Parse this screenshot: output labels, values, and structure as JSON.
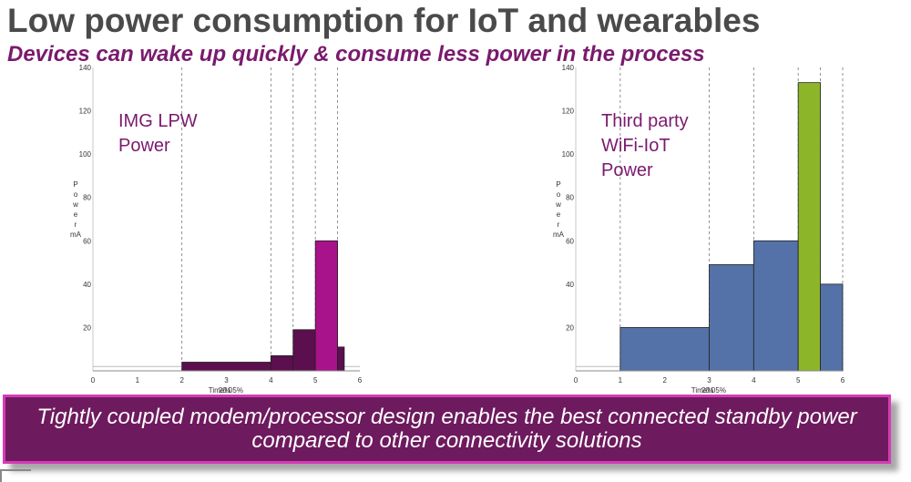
{
  "slide": {
    "title": "Low power consumption for IoT and wearables",
    "subtitle": "Devices can wake up quickly & consume less power in the process",
    "banner": "Tightly coupled modem/processor design enables the best connected standby power compared to other connectivity solutions"
  },
  "chart_data": [
    {
      "type": "bar",
      "inset_label": [
        "IMG LPW",
        "Power"
      ],
      "ylabel": "Power mA",
      "ylabel_chars": [
        "P",
        "o",
        "w",
        "e",
        "r",
        "mA"
      ],
      "xlabel": "Time%",
      "xlabel_overlay": "20.05%",
      "xlim": [
        0,
        6
      ],
      "ylim": [
        0,
        140
      ],
      "xticks": [
        "0",
        "1",
        "2",
        "3",
        "4",
        "5",
        "6"
      ],
      "yticks": [
        "20",
        "40",
        "60",
        "80",
        "100",
        "120",
        "140"
      ],
      "baseline": 2,
      "vlines": [
        2,
        4,
        4.5,
        5,
        5.5
      ],
      "bars": [
        {
          "x0": 2,
          "x1": 4,
          "value": 4,
          "color": "#5b0f4f"
        },
        {
          "x0": 4,
          "x1": 4.5,
          "value": 7,
          "color": "#5b0f4f"
        },
        {
          "x0": 4.5,
          "x1": 5,
          "value": 19,
          "color": "#5b0f4f"
        },
        {
          "x0": 5,
          "x1": 5.5,
          "value": 60,
          "color": "#a8128a"
        },
        {
          "x0": 5.5,
          "x1": 5.65,
          "value": 11,
          "color": "#5b0f4f"
        }
      ]
    },
    {
      "type": "bar",
      "inset_label": [
        "Third party",
        "WiFi-IoT",
        "Power"
      ],
      "ylabel": "Power mA",
      "ylabel_chars": [
        "P",
        "o",
        "w",
        "e",
        "r",
        "mA"
      ],
      "xlabel": "Time%",
      "xlabel_overlay": "20.05%",
      "xlim": [
        0,
        6
      ],
      "ylim": [
        0,
        140
      ],
      "xticks": [
        "0",
        "1",
        "2",
        "3",
        "4",
        "5",
        "6"
      ],
      "yticks": [
        "20",
        "40",
        "60",
        "80",
        "100",
        "120",
        "140"
      ],
      "baseline": 2,
      "vlines": [
        1,
        3,
        4,
        5,
        5.5,
        6
      ],
      "bars": [
        {
          "x0": 1,
          "x1": 3,
          "value": 20,
          "color": "#5472a8"
        },
        {
          "x0": 3,
          "x1": 4,
          "value": 49,
          "color": "#5472a8"
        },
        {
          "x0": 4,
          "x1": 5,
          "value": 60,
          "color": "#5472a8"
        },
        {
          "x0": 5,
          "x1": 5.5,
          "value": 133,
          "color": "#8db52a"
        },
        {
          "x0": 5.5,
          "x1": 6,
          "value": 40,
          "color": "#5472a8"
        }
      ]
    }
  ]
}
